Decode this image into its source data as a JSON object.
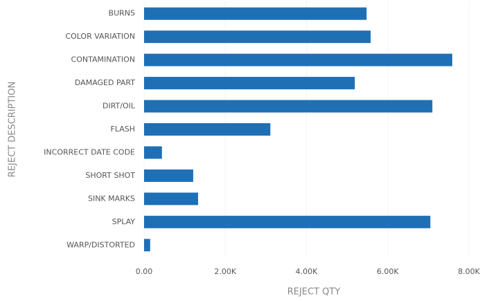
{
  "chart_data": {
    "type": "bar",
    "orientation": "horizontal",
    "x_label": "REJECT QTY",
    "y_label": "REJECT DESCRIPTION",
    "categories": [
      "BURNS",
      "COLOR VARIATION",
      "CONTAMINATION",
      "DAMAGED PART",
      "DIRT/OIL",
      "FLASH",
      "INCORRECT DATE CODE",
      "SHORT SHOT",
      "SINK MARKS",
      "SPLAY",
      "WARP/DISTORTED"
    ],
    "values": [
      5480,
      5580,
      7590,
      5190,
      7100,
      3110,
      440,
      1210,
      1330,
      7050,
      150
    ],
    "color": "#1f6fb5",
    "xlim": [
      0,
      8000
    ],
    "xticks": [
      {
        "value": 0,
        "label": "0.00"
      },
      {
        "value": 2000,
        "label": "2.00K"
      },
      {
        "value": 4000,
        "label": "4.00K"
      },
      {
        "value": 6000,
        "label": "6.00K"
      },
      {
        "value": 8000,
        "label": "8.00K"
      }
    ],
    "grid": true
  }
}
